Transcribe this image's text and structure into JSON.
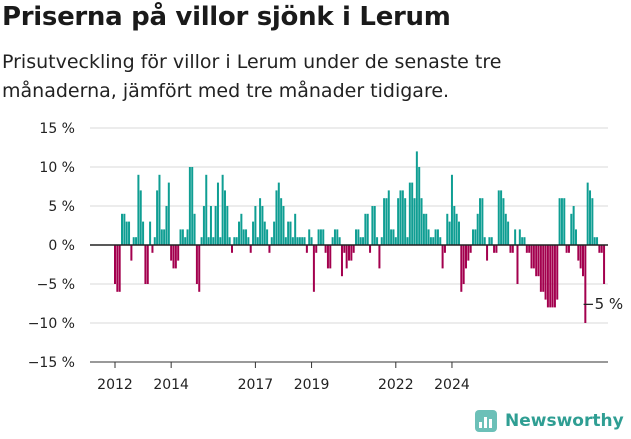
{
  "header": {
    "title": "Priserna på villor sjönk i Lerum",
    "subtitle": "Prisutveckling för villor i Lerum under de senaste tre månaderna, jämfört med tre månader tidigare."
  },
  "brand": {
    "name": "Newsworthy"
  },
  "colors": {
    "positive": "#0f9e93",
    "negative": "#a3004e",
    "grid": "#d9d9d9",
    "zero": "#222222"
  },
  "chart_data": {
    "type": "bar",
    "ylim": [
      -15,
      15
    ],
    "y_ticks": [
      15,
      10,
      5,
      0,
      -5,
      -10,
      -15
    ],
    "y_tick_labels": [
      "15 %",
      "10 %",
      "5 %",
      "0 %",
      "−5 %",
      "−10 %",
      "−15 %"
    ],
    "x_tick_labels": [
      "2012",
      "2014",
      "2017",
      "2019",
      "2022",
      "2024"
    ],
    "x_tick_months": [
      0,
      24,
      60,
      84,
      120,
      144
    ],
    "start_label": "2012",
    "grid": true,
    "annotation": "−5 %",
    "values": [
      -5,
      -6,
      -6,
      4,
      4,
      3,
      3,
      -2,
      1,
      1,
      9,
      7,
      3,
      -5,
      -5,
      3,
      -1,
      1,
      7,
      9,
      2,
      2,
      5,
      8,
      -2,
      -3,
      -3,
      -2,
      2,
      2,
      1,
      2,
      10,
      10,
      4,
      -5,
      -6,
      1,
      5,
      9,
      1,
      5,
      1,
      5,
      8,
      1,
      9,
      7,
      5,
      1,
      -1,
      1,
      1,
      3,
      4,
      2,
      2,
      1,
      -1,
      3,
      5,
      1,
      6,
      5,
      3,
      2,
      -1,
      1,
      3,
      7,
      8,
      6,
      5,
      1,
      3,
      3,
      1,
      4,
      1,
      1,
      1,
      1,
      -1,
      2,
      1,
      -6,
      -1,
      2,
      2,
      2,
      -1,
      -3,
      -3,
      1,
      2,
      2,
      1,
      -4,
      -1,
      -3,
      -2,
      -2,
      -1,
      2,
      2,
      1,
      1,
      4,
      4,
      -1,
      5,
      5,
      1,
      -3,
      1,
      6,
      6,
      7,
      2,
      2,
      1,
      6,
      7,
      7,
      6,
      1,
      8,
      8,
      6,
      12,
      10,
      6,
      4,
      4,
      2,
      1,
      1,
      2,
      2,
      1,
      -3,
      -1,
      4,
      3,
      9,
      5,
      4,
      3,
      -6,
      -5,
      -3,
      -2,
      -1,
      2,
      2,
      4,
      6,
      6,
      1,
      -2,
      1,
      1,
      -1,
      -1,
      7,
      7,
      6,
      4,
      3,
      -1,
      -1,
      2,
      -5,
      2,
      1,
      1,
      -1,
      -1,
      -3,
      -3,
      -4,
      -4,
      -6,
      -6,
      -7,
      -8,
      -8,
      -8,
      -8,
      -7,
      6,
      6,
      6,
      -1,
      -1,
      4,
      5,
      2,
      -2,
      -3,
      -4,
      -10,
      8,
      7,
      6,
      1,
      1,
      -1,
      -1,
      -5
    ]
  }
}
